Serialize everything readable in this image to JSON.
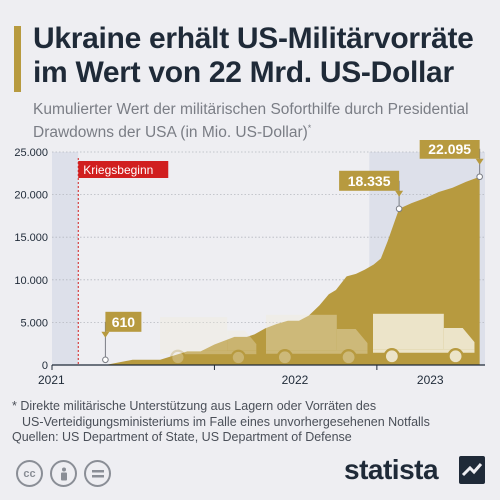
{
  "header": {
    "title": "Ukraine erhält US-Militärvorräte im Wert von 22 Mrd. US-Dollar",
    "subtitle": "Kumulierter Wert der militärischen Soforthilfe durch Presidential Drawdowns der USA (in Mio. US-Dollar)",
    "subtitle_mark": "*"
  },
  "colors": {
    "area": "#b79a3f",
    "background": "#eeeef2",
    "highlight_band": "#dde0ea",
    "marker_red": "#d11f1f",
    "text": "#1f2a38"
  },
  "chart_data": {
    "type": "area",
    "x_axis": "time",
    "x_tick_labels": [
      "2021",
      "2022",
      "2023"
    ],
    "xlim": [
      "2021-01-01",
      "2023-09-01"
    ],
    "ylim": [
      0,
      25000
    ],
    "y_ticks": [
      0,
      5000,
      10000,
      15000,
      20000,
      25000
    ],
    "y_tick_labels": [
      "0",
      "5.000",
      "10.000",
      "15.000",
      "20.000",
      "25.000"
    ],
    "grid": true,
    "series": [
      {
        "x": [
          "2021-01-01",
          "2021-03-01",
          "2021-05-01",
          "2021-07-01",
          "2021-08-01",
          "2021-09-01",
          "2021-11-01",
          "2021-12-01",
          "2022-01-01",
          "2022-02-15",
          "2022-03-15",
          "2022-04-01",
          "2022-04-25",
          "2022-05-20",
          "2022-06-15",
          "2022-07-10",
          "2022-08-01",
          "2022-08-25",
          "2022-09-15",
          "2022-10-01",
          "2022-10-25",
          "2022-11-15",
          "2022-12-05",
          "2022-12-25",
          "2023-01-10",
          "2023-01-25",
          "2023-02-20",
          "2023-03-20",
          "2023-04-20",
          "2023-05-20",
          "2023-06-20",
          "2023-07-20",
          "2023-08-20"
        ],
        "values": [
          0,
          0,
          0,
          610,
          610,
          610,
          1600,
          1600,
          2400,
          3300,
          3300,
          3600,
          4300,
          4800,
          5200,
          5200,
          5800,
          7000,
          8300,
          8800,
          10400,
          10700,
          11200,
          11800,
          12500,
          14500,
          18335,
          19000,
          19600,
          20300,
          20800,
          21500,
          22095
        ]
      }
    ],
    "highlight_periods": [
      {
        "start": "2021-01-01",
        "end": "2021-03-01"
      },
      {
        "start": "2022-12-15",
        "end": "2023-09-01"
      }
    ],
    "markers": [
      {
        "label": "Kriegsbeginn",
        "x": "2021-03-01"
      }
    ],
    "data_labels": [
      {
        "label": "610",
        "x": "2021-05-01",
        "y": 610
      },
      {
        "label": "18.335",
        "x": "2023-02-20",
        "y": 18335
      },
      {
        "label": "22.095",
        "x": "2023-08-20",
        "y": 22095
      }
    ]
  },
  "footer": {
    "footnote_line1": "* Direkte militärische Unterstützung aus Lagern oder Vorräten des",
    "footnote_line2": "US-Verteidigungsministeriums im Falle eines unvorhergesehenen Notfalls",
    "sources": "Quellen: US Department of State, US Department of Defense",
    "brand": "statista",
    "cc_icons": [
      "cc-icon",
      "attribution-icon",
      "no-derivatives-icon"
    ]
  }
}
